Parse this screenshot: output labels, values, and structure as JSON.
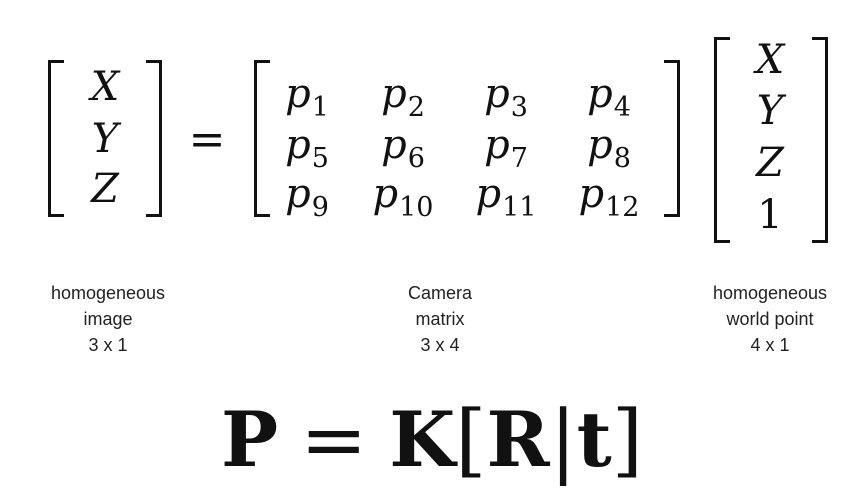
{
  "lhs_vector": [
    "X",
    "Y",
    "Z"
  ],
  "equals_sign": "=",
  "camera_matrix": {
    "rows": [
      [
        {
          "base": "p",
          "sub": "1"
        },
        {
          "base": "p",
          "sub": "2"
        },
        {
          "base": "p",
          "sub": "3"
        },
        {
          "base": "p",
          "sub": "4"
        }
      ],
      [
        {
          "base": "p",
          "sub": "5"
        },
        {
          "base": "p",
          "sub": "6"
        },
        {
          "base": "p",
          "sub": "7"
        },
        {
          "base": "p",
          "sub": "8"
        }
      ],
      [
        {
          "base": "p",
          "sub": "9"
        },
        {
          "base": "p",
          "sub": "10"
        },
        {
          "base": "p",
          "sub": "11"
        },
        {
          "base": "p",
          "sub": "12"
        }
      ]
    ]
  },
  "rhs_vector": [
    "X",
    "Y",
    "Z",
    "1"
  ],
  "captions": {
    "image": {
      "line1": "homogeneous",
      "line2": "image",
      "line3": "3 x 1"
    },
    "camera": {
      "line1": "Camera",
      "line2": "matrix",
      "line3": "3 x 4"
    },
    "world": {
      "line1": "homogeneous",
      "line2": "world point",
      "line3": "4 x 1"
    }
  },
  "formula": {
    "P": "P",
    "eq": "=",
    "K": "K",
    "open": "[",
    "R": "R",
    "bar": "|",
    "t": "t",
    "close": "]"
  }
}
